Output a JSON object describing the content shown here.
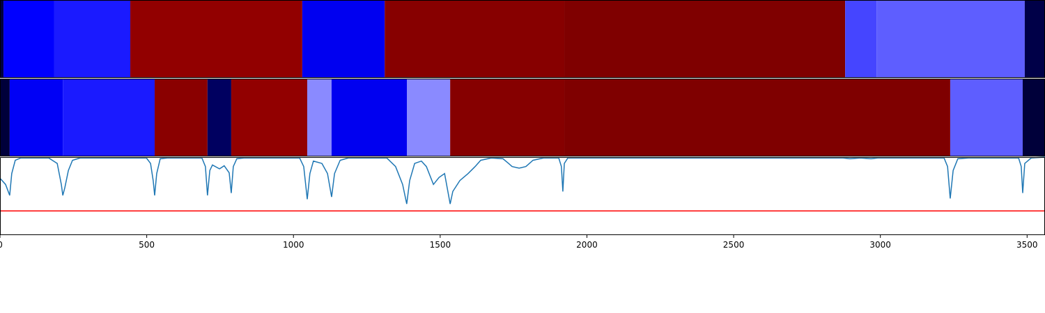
{
  "chart_data": [
    {
      "type": "segments",
      "xlim": [
        0,
        3561
      ],
      "segments": [
        {
          "start": 0,
          "end": 12,
          "color": "#000040"
        },
        {
          "start": 12,
          "end": 185,
          "color": "#0000ff"
        },
        {
          "start": 185,
          "end": 444,
          "color": "#1a1aff"
        },
        {
          "start": 444,
          "end": 1030,
          "color": "#920000"
        },
        {
          "start": 1030,
          "end": 1311,
          "color": "#0000f0"
        },
        {
          "start": 1311,
          "end": 1923,
          "color": "#870000"
        },
        {
          "start": 1923,
          "end": 2880,
          "color": "#7f0000"
        },
        {
          "start": 2880,
          "end": 2987,
          "color": "#4545ff"
        },
        {
          "start": 2987,
          "end": 3492,
          "color": "#5e5eff"
        },
        {
          "start": 3492,
          "end": 3561,
          "color": "#000048"
        }
      ]
    },
    {
      "type": "segments",
      "xlim": [
        0,
        3561
      ],
      "segments": [
        {
          "start": 0,
          "end": 33,
          "color": "#00003a"
        },
        {
          "start": 33,
          "end": 214,
          "color": "#0000f5"
        },
        {
          "start": 214,
          "end": 527,
          "color": "#1a1aff"
        },
        {
          "start": 527,
          "end": 707,
          "color": "#8a0000"
        },
        {
          "start": 707,
          "end": 788,
          "color": "#000060"
        },
        {
          "start": 788,
          "end": 1047,
          "color": "#920000"
        },
        {
          "start": 1047,
          "end": 1130,
          "color": "#8a8aff"
        },
        {
          "start": 1130,
          "end": 1387,
          "color": "#0000f0"
        },
        {
          "start": 1387,
          "end": 1534,
          "color": "#8a8aff"
        },
        {
          "start": 1534,
          "end": 1923,
          "color": "#860000"
        },
        {
          "start": 1923,
          "end": 3238,
          "color": "#7f0000"
        },
        {
          "start": 3238,
          "end": 3485,
          "color": "#5e5eff"
        },
        {
          "start": 3485,
          "end": 3561,
          "color": "#00003a"
        }
      ]
    },
    {
      "type": "line",
      "xlim": [
        0,
        3561
      ],
      "ylim": [
        0,
        1
      ],
      "xticks": [
        0,
        500,
        1000,
        1500,
        2000,
        2500,
        3000,
        3500
      ],
      "hline": 0.31,
      "hline_color": "#ff0000",
      "series": [
        {
          "color": "#1f77b4",
          "x": [
            0,
            19,
            33,
            40,
            52,
            71,
            166,
            195,
            209,
            214,
            221,
            233,
            247,
            273,
            499,
            513,
            522,
            527,
            534,
            546,
            570,
            688,
            700,
            707,
            715,
            724,
            748,
            764,
            781,
            788,
            795,
            807,
            831,
            1021,
            1035,
            1047,
            1056,
            1068,
            1097,
            1116,
            1130,
            1140,
            1159,
            1187,
            1318,
            1348,
            1372,
            1386,
            1396,
            1413,
            1436,
            1453,
            1477,
            1496,
            1515,
            1534,
            1543,
            1567,
            1595,
            1619,
            1638,
            1674,
            1714,
            1733,
            1745,
            1769,
            1792,
            1816,
            1852,
            1904,
            1913,
            1918,
            1923,
            1935,
            2873,
            2896,
            2932,
            2968,
            2991,
            3217,
            3229,
            3238,
            3248,
            3264,
            3300,
            3471,
            3480,
            3485,
            3492,
            3514,
            3561
          ],
          "values": [
            0.73,
            0.65,
            0.51,
            0.79,
            0.96,
            0.99,
            0.99,
            0.92,
            0.65,
            0.51,
            0.61,
            0.83,
            0.96,
            0.99,
            0.99,
            0.92,
            0.7,
            0.51,
            0.79,
            0.98,
            0.99,
            0.99,
            0.88,
            0.51,
            0.83,
            0.9,
            0.85,
            0.89,
            0.8,
            0.54,
            0.88,
            0.98,
            0.99,
            0.99,
            0.88,
            0.46,
            0.79,
            0.95,
            0.92,
            0.79,
            0.49,
            0.79,
            0.96,
            0.99,
            0.99,
            0.88,
            0.65,
            0.4,
            0.7,
            0.92,
            0.95,
            0.88,
            0.65,
            0.74,
            0.79,
            0.4,
            0.56,
            0.7,
            0.79,
            0.88,
            0.96,
            0.99,
            0.98,
            0.92,
            0.88,
            0.86,
            0.88,
            0.96,
            0.99,
            0.99,
            0.88,
            0.56,
            0.92,
            0.99,
            0.99,
            0.98,
            0.99,
            0.98,
            0.99,
            0.99,
            0.88,
            0.47,
            0.83,
            0.98,
            0.99,
            0.99,
            0.88,
            0.54,
            0.92,
            0.99,
            1.0
          ]
        }
      ]
    }
  ]
}
